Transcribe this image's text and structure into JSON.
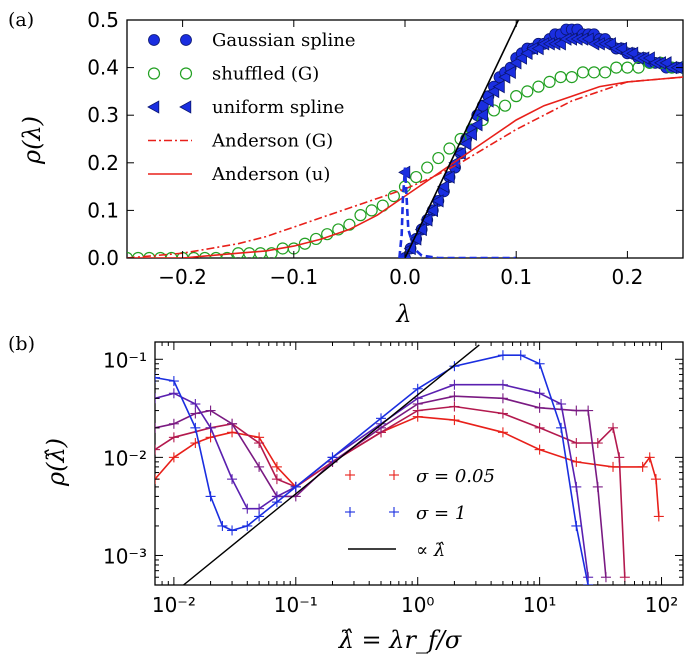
{
  "chart_data": [
    {
      "panel_label": "(a)",
      "type": "scatter",
      "xlabel": "λ",
      "ylabel": "ρ(λ)",
      "xlim": [
        -0.25,
        0.25
      ],
      "ylim": [
        0.0,
        0.5
      ],
      "xticks": [
        -0.2,
        -0.1,
        0.0,
        0.1,
        0.2
      ],
      "xtick_labels": [
        "−0.2",
        "−0.1",
        "0.0",
        "0.1",
        "0.2"
      ],
      "yticks": [
        0.0,
        0.1,
        0.2,
        0.3,
        0.4,
        0.5
      ],
      "ytick_labels": [
        "0.0",
        "0.1",
        "0.2",
        "0.3",
        "0.4",
        "0.5"
      ],
      "grid": false,
      "legend_position": "top-left",
      "series": [
        {
          "name": "Gaussian spline",
          "marker": "filled-circle",
          "color": "#1a2ee0",
          "x": [
            0.0,
            0.005,
            0.01,
            0.015,
            0.02,
            0.025,
            0.03,
            0.035,
            0.04,
            0.045,
            0.05,
            0.055,
            0.06,
            0.065,
            0.07,
            0.075,
            0.08,
            0.085,
            0.09,
            0.095,
            0.1,
            0.105,
            0.11,
            0.115,
            0.12,
            0.125,
            0.13,
            0.135,
            0.14,
            0.145,
            0.15,
            0.155,
            0.16,
            0.165,
            0.17,
            0.175,
            0.18,
            0.185,
            0.19,
            0.195,
            0.2,
            0.205,
            0.21,
            0.215,
            0.22,
            0.225,
            0.23,
            0.235,
            0.24,
            0.245
          ],
          "y": [
            0.0,
            0.02,
            0.04,
            0.06,
            0.08,
            0.1,
            0.12,
            0.14,
            0.17,
            0.19,
            0.22,
            0.25,
            0.27,
            0.3,
            0.32,
            0.34,
            0.36,
            0.38,
            0.39,
            0.4,
            0.42,
            0.43,
            0.44,
            0.44,
            0.45,
            0.45,
            0.46,
            0.47,
            0.47,
            0.48,
            0.48,
            0.48,
            0.47,
            0.47,
            0.47,
            0.46,
            0.46,
            0.45,
            0.44,
            0.44,
            0.43,
            0.43,
            0.42,
            0.42,
            0.41,
            0.41,
            0.41,
            0.4,
            0.4,
            0.4
          ]
        },
        {
          "name": "shuffled (G)",
          "marker": "open-circle",
          "color": "#22a022",
          "x": [
            -0.25,
            -0.24,
            -0.23,
            -0.22,
            -0.21,
            -0.2,
            -0.19,
            -0.18,
            -0.17,
            -0.16,
            -0.15,
            -0.14,
            -0.13,
            -0.12,
            -0.11,
            -0.1,
            -0.09,
            -0.08,
            -0.07,
            -0.06,
            -0.05,
            -0.04,
            -0.03,
            -0.02,
            -0.01,
            0.0,
            0.01,
            0.02,
            0.03,
            0.04,
            0.05,
            0.06,
            0.07,
            0.08,
            0.09,
            0.1,
            0.11,
            0.12,
            0.13,
            0.14,
            0.15,
            0.16,
            0.17,
            0.18,
            0.19,
            0.2,
            0.21,
            0.22,
            0.23,
            0.24,
            0.25
          ],
          "y": [
            0.0,
            0.0,
            0.0,
            0.0,
            0.0,
            0.0,
            0.0,
            0.0,
            0.0,
            0.0,
            0.01,
            0.01,
            0.01,
            0.01,
            0.02,
            0.02,
            0.03,
            0.04,
            0.05,
            0.06,
            0.07,
            0.09,
            0.1,
            0.11,
            0.13,
            0.15,
            0.17,
            0.19,
            0.21,
            0.23,
            0.25,
            0.27,
            0.29,
            0.31,
            0.32,
            0.34,
            0.35,
            0.36,
            0.37,
            0.38,
            0.38,
            0.39,
            0.39,
            0.39,
            0.4,
            0.4,
            0.4,
            0.41,
            0.41,
            0.4,
            0.4
          ]
        },
        {
          "name": "uniform spline",
          "marker": "filled-left-triangle",
          "color": "#1a2ee0",
          "x": [
            0.0,
            0.005,
            0.01,
            0.015,
            0.02,
            0.025,
            0.03,
            0.035,
            0.04,
            0.045,
            0.05,
            0.055,
            0.06,
            0.065,
            0.07,
            0.075,
            0.08,
            0.085,
            0.09,
            0.095,
            0.1,
            0.105,
            0.11,
            0.115,
            0.12,
            0.125,
            0.13,
            0.135,
            0.14,
            0.145,
            0.15,
            0.155,
            0.16,
            0.165,
            0.17,
            0.175,
            0.18,
            0.185,
            0.19,
            0.195,
            0.2,
            0.205,
            0.21,
            0.215,
            0.22,
            0.225,
            0.23,
            0.235,
            0.24,
            0.245
          ],
          "y": [
            0.18,
            0.02,
            0.04,
            0.06,
            0.08,
            0.1,
            0.12,
            0.15,
            0.17,
            0.2,
            0.22,
            0.24,
            0.26,
            0.28,
            0.3,
            0.33,
            0.35,
            0.36,
            0.38,
            0.39,
            0.41,
            0.42,
            0.43,
            0.44,
            0.44,
            0.45,
            0.45,
            0.45,
            0.45,
            0.46,
            0.46,
            0.46,
            0.46,
            0.46,
            0.45,
            0.45,
            0.45,
            0.45,
            0.44,
            0.44,
            0.43,
            0.43,
            0.42,
            0.42,
            0.42,
            0.41,
            0.41,
            0.41,
            0.4,
            0.4
          ]
        },
        {
          "name": "Anderson (G)",
          "line_style": "dash-dot",
          "color": "#e8201a",
          "x": [
            -0.25,
            -0.225,
            -0.2,
            -0.175,
            -0.15,
            -0.125,
            -0.1,
            -0.075,
            -0.05,
            -0.025,
            0.0,
            0.025,
            0.05,
            0.075,
            0.1,
            0.125,
            0.15,
            0.175,
            0.2,
            0.225,
            0.25
          ],
          "y": [
            0.0,
            0.005,
            0.01,
            0.02,
            0.03,
            0.045,
            0.065,
            0.085,
            0.105,
            0.125,
            0.145,
            0.17,
            0.2,
            0.235,
            0.27,
            0.3,
            0.33,
            0.35,
            0.37,
            0.375,
            0.38
          ]
        },
        {
          "name": "Anderson (u)",
          "line_style": "solid",
          "color": "#e8201a",
          "x": [
            -0.25,
            -0.225,
            -0.2,
            -0.175,
            -0.15,
            -0.125,
            -0.1,
            -0.075,
            -0.05,
            -0.025,
            0.0,
            0.025,
            0.05,
            0.075,
            0.1,
            0.125,
            0.15,
            0.175,
            0.2,
            0.225,
            0.25
          ],
          "y": [
            0.0,
            0.0,
            0.0,
            0.005,
            0.01,
            0.015,
            0.025,
            0.04,
            0.06,
            0.09,
            0.13,
            0.17,
            0.21,
            0.25,
            0.29,
            0.32,
            0.34,
            0.36,
            0.37,
            0.375,
            0.38
          ]
        },
        {
          "name": "",
          "line_style": "dashed",
          "color": "#1a2ee0",
          "x": [
            -0.005,
            -0.003,
            -0.002,
            0.0,
            0.003,
            0.008,
            0.015,
            0.03,
            0.06,
            0.1
          ],
          "y": [
            0.0,
            0.05,
            0.12,
            0.19,
            0.06,
            0.02,
            0.005,
            0.0,
            0.0,
            0.0
          ]
        },
        {
          "name": "",
          "line_style": "solid",
          "color": "#000000",
          "x": [
            0.0,
            0.102
          ],
          "y": [
            0.0,
            0.5
          ]
        }
      ]
    },
    {
      "panel_label": "(b)",
      "type": "line",
      "xlabel": "λ̂ = λr_f/σ",
      "ylabel": "ρ(λ̂)",
      "xscale": "log",
      "yscale": "log",
      "xlim": [
        0.007,
        150
      ],
      "ylim": [
        0.0005,
        0.15
      ],
      "xticks": [
        0.01,
        0.1,
        1,
        10,
        100
      ],
      "xtick_labels": [
        "10⁻²",
        "10⁻¹",
        "10⁰",
        "10¹",
        "10²"
      ],
      "yticks": [
        0.001,
        0.01,
        0.1
      ],
      "ytick_labels": [
        "10⁻³",
        "10⁻²",
        "10⁻¹"
      ],
      "grid": false,
      "legend_position": "lower-center",
      "series": [
        {
          "name": "σ = 0.05",
          "color": "#e8201a",
          "marker": "plus",
          "x": [
            0.007,
            0.01,
            0.015,
            0.02,
            0.03,
            0.05,
            0.07,
            0.1,
            0.2,
            0.5,
            1,
            2,
            5,
            10,
            20,
            40,
            70,
            80,
            90,
            95
          ],
          "y": [
            0.006,
            0.01,
            0.014,
            0.016,
            0.018,
            0.016,
            0.008,
            0.005,
            0.009,
            0.018,
            0.026,
            0.024,
            0.018,
            0.012,
            0.009,
            0.008,
            0.008,
            0.01,
            0.006,
            0.0025
          ]
        },
        {
          "name": "",
          "color": "#b3194e",
          "marker": "plus",
          "x": [
            0.007,
            0.01,
            0.02,
            0.03,
            0.05,
            0.07,
            0.1,
            0.2,
            0.5,
            1,
            2,
            5,
            10,
            20,
            30,
            40,
            45,
            50
          ],
          "y": [
            0.012,
            0.016,
            0.02,
            0.022,
            0.014,
            0.006,
            0.005,
            0.009,
            0.018,
            0.03,
            0.033,
            0.028,
            0.02,
            0.014,
            0.014,
            0.02,
            0.01,
            0.0006
          ]
        },
        {
          "name": "",
          "color": "#7a1a82",
          "marker": "plus",
          "x": [
            0.007,
            0.01,
            0.015,
            0.02,
            0.03,
            0.05,
            0.07,
            0.1,
            0.2,
            0.5,
            1,
            2,
            5,
            10,
            20,
            25,
            30,
            35
          ],
          "y": [
            0.02,
            0.022,
            0.028,
            0.03,
            0.022,
            0.008,
            0.004,
            0.004,
            0.009,
            0.02,
            0.035,
            0.042,
            0.04,
            0.032,
            0.03,
            0.03,
            0.005,
            0.0006
          ]
        },
        {
          "name": "",
          "color": "#5a20b0",
          "marker": "plus",
          "x": [
            0.007,
            0.01,
            0.015,
            0.02,
            0.03,
            0.04,
            0.05,
            0.07,
            0.1,
            0.2,
            0.5,
            1,
            2,
            5,
            10,
            15,
            20,
            25
          ],
          "y": [
            0.04,
            0.045,
            0.035,
            0.02,
            0.006,
            0.003,
            0.003,
            0.004,
            0.005,
            0.01,
            0.022,
            0.04,
            0.055,
            0.055,
            0.045,
            0.035,
            0.005,
            0.0006
          ]
        },
        {
          "name": "σ = 1",
          "color": "#1a2ee0",
          "marker": "plus",
          "x": [
            0.007,
            0.01,
            0.015,
            0.02,
            0.025,
            0.03,
            0.04,
            0.05,
            0.07,
            0.1,
            0.2,
            0.5,
            1,
            2,
            5,
            7,
            10,
            15,
            20,
            25
          ],
          "y": [
            0.065,
            0.06,
            0.02,
            0.004,
            0.002,
            0.0018,
            0.002,
            0.0025,
            0.0035,
            0.005,
            0.01,
            0.025,
            0.05,
            0.085,
            0.11,
            0.11,
            0.09,
            0.02,
            0.002,
            0.0005
          ]
        },
        {
          "name": "∝ λ̂",
          "color": "#000000",
          "x": [
            0.012,
            3.2
          ],
          "y": [
            0.0005,
            0.14
          ]
        }
      ]
    }
  ]
}
